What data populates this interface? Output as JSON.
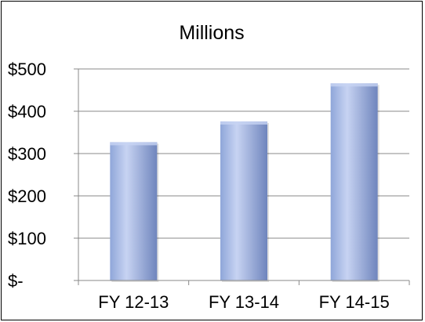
{
  "chart_data": {
    "type": "bar",
    "title": "Millions",
    "categories": [
      "FY 12-13",
      "FY 13-14",
      "FY 14-15"
    ],
    "values": [
      327,
      376,
      466
    ],
    "ylim": [
      0,
      500
    ],
    "yticks": [
      0,
      100,
      200,
      300,
      400,
      500
    ],
    "ytick_labels": [
      "$-",
      "$100",
      "$200",
      "$300",
      "$400",
      "$500"
    ],
    "grid": true,
    "legend": "none",
    "colors": {
      "bar_light": "#c7d3f2",
      "bar_mid": "#8fa6d9",
      "bar_dark": "#6f85bd",
      "gridline": "#888888",
      "axis": "#888888"
    }
  }
}
